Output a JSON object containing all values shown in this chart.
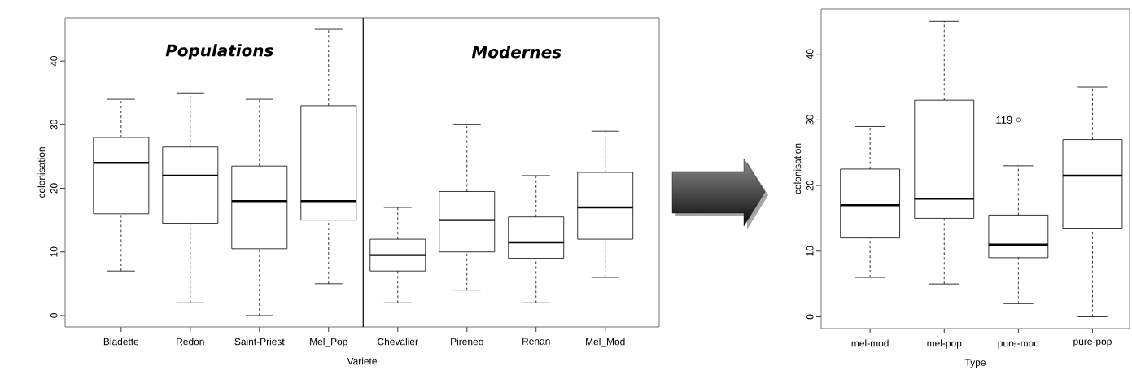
{
  "chart_data": [
    {
      "type": "box",
      "categories": [
        "Bladette",
        "Redon",
        "Saint-Priest",
        "Mel_Pop",
        "Chevalier",
        "Pireneo",
        "Renan",
        "Mel_Mod"
      ],
      "boxes": [
        {
          "low": 7,
          "q1": 16,
          "median": 24,
          "q3": 28,
          "high": 34
        },
        {
          "low": 2,
          "q1": 14.5,
          "median": 22,
          "q3": 26.5,
          "high": 35
        },
        {
          "low": 0,
          "q1": 10.5,
          "median": 18,
          "q3": 23.5,
          "high": 34
        },
        {
          "low": 5,
          "q1": 15,
          "median": 18,
          "q3": 33,
          "high": 45
        },
        {
          "low": 2,
          "q1": 7,
          "median": 9.5,
          "q3": 12,
          "high": 17
        },
        {
          "low": 4,
          "q1": 10,
          "median": 15,
          "q3": 19.5,
          "high": 30
        },
        {
          "low": 2,
          "q1": 9,
          "median": 11.5,
          "q3": 15.5,
          "high": 22
        },
        {
          "low": 6,
          "q1": 12,
          "median": 17,
          "q3": 22.5,
          "high": 29
        }
      ],
      "xlabel": "Variete",
      "ylabel": "colonisation",
      "ylim": [
        -1.8,
        46.8
      ],
      "yticks": [
        0,
        10,
        20,
        30,
        40
      ],
      "annotations": [
        "Populations",
        "Modernes"
      ]
    },
    {
      "type": "box",
      "categories": [
        "mel-mod",
        "mel-pop",
        "pure-mod",
        "pure-pop"
      ],
      "boxes": [
        {
          "low": 6,
          "q1": 12,
          "median": 17,
          "q3": 22.5,
          "high": 29
        },
        {
          "low": 5,
          "q1": 15,
          "median": 18,
          "q3": 33,
          "high": 45
        },
        {
          "low": 2,
          "q1": 9,
          "median": 11,
          "q3": 15.5,
          "high": 23,
          "outliers": [
            30
          ]
        },
        {
          "low": 0,
          "q1": 13.5,
          "median": 21.5,
          "q3": 27,
          "high": 35
        }
      ],
      "xlabel": "Type",
      "ylabel": "colonisation",
      "ylim": [
        -1.8,
        46.9
      ],
      "yticks": [
        0,
        10,
        20,
        30,
        40
      ],
      "annotations": [
        "119"
      ]
    }
  ]
}
